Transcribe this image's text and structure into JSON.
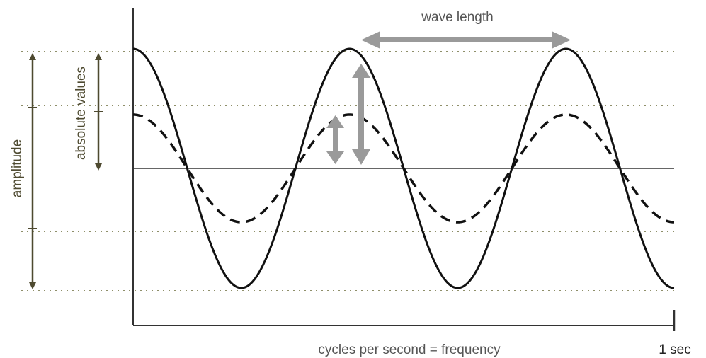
{
  "diagram": {
    "labels": {
      "wave_length": "wave length",
      "absolute_values": "absolute values",
      "amplitude": "amplitude",
      "x_axis": "cycles per second = frequency",
      "end_tick": "1 sec"
    },
    "waves": [
      {
        "style": "solid",
        "cycles": 2.5,
        "relative_amplitude": 1.0
      },
      {
        "style": "dashed",
        "cycles": 2.5,
        "relative_amplitude": 0.45
      }
    ],
    "colors": {
      "wave": "#111111",
      "axis": "#333333",
      "guide_dots": "#8f8f6a",
      "amplitude_arrows": "#4e4a30",
      "grey_arrows": "#9a9a9a"
    }
  }
}
